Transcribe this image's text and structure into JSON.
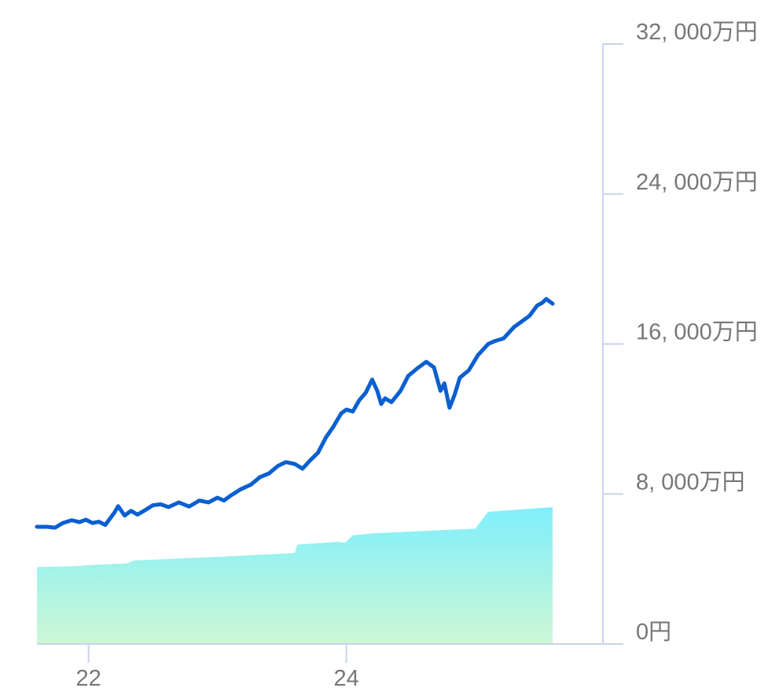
{
  "chart_data": {
    "type": "area",
    "title": "",
    "xlabel": "",
    "ylabel": "",
    "x_tick_labels": [
      {
        "x": 22,
        "label": "22"
      },
      {
        "x": 24,
        "label": "24"
      }
    ],
    "y_tick_labels": [
      {
        "y": 0,
        "label": "0円"
      },
      {
        "y": 8000,
        "label": "8, 000万円"
      },
      {
        "y": 16000,
        "label": "16, 000万円"
      },
      {
        "y": 24000,
        "label": "24, 000万円"
      },
      {
        "y": 32000,
        "label": "32, 000万円"
      }
    ],
    "xlim": [
      21.6,
      25.99
    ],
    "ylim": [
      0,
      32000
    ],
    "y_unit": "万円",
    "grid": false,
    "legend": "none",
    "series": [
      {
        "kind": "line",
        "color": "#0b5fd0",
        "points": [
          [
            21.6,
            6250
          ],
          [
            21.68,
            6250
          ],
          [
            21.74,
            6200
          ],
          [
            21.8,
            6450
          ],
          [
            21.87,
            6600
          ],
          [
            21.93,
            6500
          ],
          [
            21.98,
            6630
          ],
          [
            22.03,
            6450
          ],
          [
            22.08,
            6520
          ],
          [
            22.13,
            6350
          ],
          [
            22.2,
            7000
          ],
          [
            22.23,
            7350
          ],
          [
            22.28,
            6850
          ],
          [
            22.33,
            7100
          ],
          [
            22.38,
            6900
          ],
          [
            22.43,
            7100
          ],
          [
            22.5,
            7400
          ],
          [
            22.56,
            7450
          ],
          [
            22.62,
            7300
          ],
          [
            22.7,
            7550
          ],
          [
            22.78,
            7330
          ],
          [
            22.86,
            7650
          ],
          [
            22.93,
            7550
          ],
          [
            23.0,
            7800
          ],
          [
            23.05,
            7650
          ],
          [
            23.1,
            7900
          ],
          [
            23.18,
            8250
          ],
          [
            23.26,
            8500
          ],
          [
            23.33,
            8900
          ],
          [
            23.4,
            9100
          ],
          [
            23.47,
            9500
          ],
          [
            23.53,
            9700
          ],
          [
            23.6,
            9600
          ],
          [
            23.66,
            9350
          ],
          [
            23.72,
            9800
          ],
          [
            23.78,
            10200
          ],
          [
            23.84,
            11000
          ],
          [
            23.9,
            11600
          ],
          [
            23.96,
            12300
          ],
          [
            24.0,
            12500
          ],
          [
            24.05,
            12400
          ],
          [
            24.1,
            13000
          ],
          [
            24.15,
            13400
          ],
          [
            24.2,
            14100
          ],
          [
            24.24,
            13500
          ],
          [
            24.27,
            12800
          ],
          [
            24.3,
            13100
          ],
          [
            24.35,
            12900
          ],
          [
            24.42,
            13500
          ],
          [
            24.48,
            14300
          ],
          [
            24.55,
            14700
          ],
          [
            24.62,
            15050
          ],
          [
            24.68,
            14750
          ],
          [
            24.73,
            13500
          ],
          [
            24.76,
            13900
          ],
          [
            24.8,
            12600
          ],
          [
            24.84,
            13300
          ],
          [
            24.88,
            14200
          ],
          [
            24.95,
            14600
          ],
          [
            25.02,
            15400
          ],
          [
            25.1,
            16000
          ],
          [
            25.15,
            16150
          ],
          [
            25.22,
            16300
          ],
          [
            25.3,
            16900
          ],
          [
            25.36,
            17200
          ],
          [
            25.42,
            17500
          ],
          [
            25.48,
            18050
          ],
          [
            25.52,
            18200
          ],
          [
            25.55,
            18400
          ],
          [
            25.57,
            18300
          ],
          [
            25.6,
            18150
          ]
        ]
      },
      {
        "kind": "area",
        "gradient": [
          "#7feffb",
          "#cdf7d6"
        ],
        "points": [
          [
            21.6,
            4100
          ],
          [
            21.9,
            4150
          ],
          [
            21.99,
            4200
          ],
          [
            22.3,
            4300
          ],
          [
            22.35,
            4450
          ],
          [
            23.01,
            4650
          ],
          [
            23.6,
            4850
          ],
          [
            23.62,
            5300
          ],
          [
            23.93,
            5450
          ],
          [
            23.99,
            5400
          ],
          [
            24.05,
            5800
          ],
          [
            24.2,
            5900
          ],
          [
            25.0,
            6150
          ],
          [
            25.1,
            7050
          ],
          [
            25.6,
            7300
          ]
        ]
      }
    ]
  }
}
